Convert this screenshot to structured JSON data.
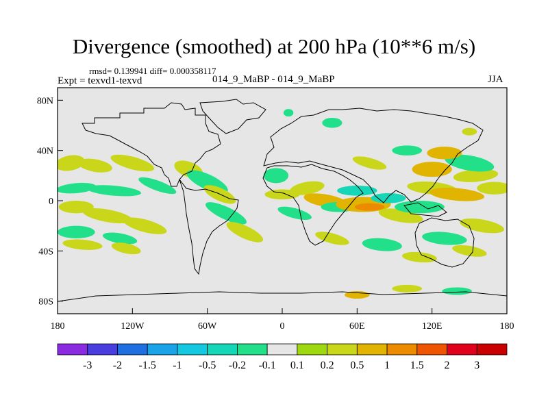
{
  "header": {
    "title": "Divergence (smoothed) at 200 hPa (10**6 m/s)",
    "stats": "rmsd= 0.139941 diff= 0.000358117",
    "expt": "Expt = texvd1-texvd",
    "case": "014_9_MaBP - 014_9_MaBP",
    "season": "JJA"
  },
  "chart_data": {
    "type": "contour-map",
    "title": "Divergence (smoothed) at 200 hPa (10**6 m/s)",
    "xlabel": "",
    "ylabel": "",
    "xlim": [
      -180,
      180
    ],
    "ylim": [
      -90,
      90
    ],
    "x_ticks": [
      {
        "value": -180,
        "label": "180"
      },
      {
        "value": -120,
        "label": "120W"
      },
      {
        "value": -60,
        "label": "60W"
      },
      {
        "value": 0,
        "label": "0"
      },
      {
        "value": 60,
        "label": "60E"
      },
      {
        "value": 120,
        "label": "120E"
      },
      {
        "value": 180,
        "label": "180"
      }
    ],
    "y_ticks": [
      {
        "value": 80,
        "label": "80N"
      },
      {
        "value": 40,
        "label": "40N"
      },
      {
        "value": 0,
        "label": "0"
      },
      {
        "value": -40,
        "label": "40S"
      },
      {
        "value": -80,
        "label": "80S"
      }
    ],
    "colorbar": {
      "levels": [
        "-3",
        "-2",
        "-1.5",
        "-1",
        "-0.5",
        "-0.2",
        "-0.1",
        "0.1",
        "0.2",
        "0.5",
        "1",
        "1.5",
        "2",
        "3"
      ],
      "colors": [
        "#8a2be2",
        "#4a3de0",
        "#1f6fe0",
        "#1aa3e8",
        "#14c8e0",
        "#16d6b8",
        "#22e08a",
        "#e6e6e6",
        "#9ed80e",
        "#c9d61a",
        "#e0b400",
        "#ec8a00",
        "#ef5400",
        "#e0001b",
        "#c80000"
      ]
    },
    "features": [
      {
        "name": "tropical-positive-band-west",
        "lon": -170,
        "lat": 25,
        "value": 0.2
      },
      {
        "name": "equatorial-negative-band",
        "lon": -140,
        "lat": 8,
        "value": -0.2
      },
      {
        "name": "south-pacific-positive",
        "lon": -140,
        "lat": -15,
        "value": 0.2
      },
      {
        "name": "indian-ocean-negative",
        "lon": 75,
        "lat": -5,
        "value": -0.5
      },
      {
        "name": "indian-ocean-positive-core",
        "lon": 65,
        "lat": -3,
        "value": 1
      },
      {
        "name": "west-pacific-positive",
        "lon": 120,
        "lat": 25,
        "value": 0.5
      },
      {
        "name": "antarctic-coast-positive",
        "lon": 100,
        "lat": -70,
        "value": 0.2
      }
    ]
  }
}
